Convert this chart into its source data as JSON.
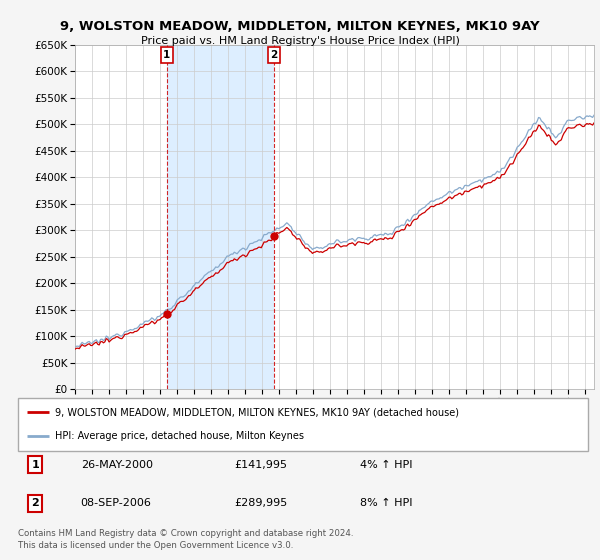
{
  "title": "9, WOLSTON MEADOW, MIDDLETON, MILTON KEYNES, MK10 9AY",
  "subtitle": "Price paid vs. HM Land Registry's House Price Index (HPI)",
  "ylim": [
    0,
    650000
  ],
  "yticks": [
    0,
    50000,
    100000,
    150000,
    200000,
    250000,
    300000,
    350000,
    400000,
    450000,
    500000,
    550000,
    600000,
    650000
  ],
  "legend_label_red": "9, WOLSTON MEADOW, MIDDLETON, MILTON KEYNES, MK10 9AY (detached house)",
  "legend_label_blue": "HPI: Average price, detached house, Milton Keynes",
  "sale1_date": "26-MAY-2000",
  "sale1_price": "£141,995",
  "sale1_hpi": "4% ↑ HPI",
  "sale2_date": "08-SEP-2006",
  "sale2_price": "£289,995",
  "sale2_hpi": "8% ↑ HPI",
  "footnote": "Contains HM Land Registry data © Crown copyright and database right 2024.\nThis data is licensed under the Open Government Licence v3.0.",
  "red_color": "#cc0000",
  "blue_color": "#88aacc",
  "shade_color": "#ddeeff",
  "grid_color": "#cccccc",
  "plot_bg_color": "#ffffff",
  "fig_bg_color": "#f5f5f5",
  "legend_bg": "#ffffff",
  "marker1_y": 141995,
  "marker2_y": 289995,
  "sale1_year": 2000.4,
  "sale2_year": 2006.69,
  "xlim_start": 1995,
  "xlim_end": 2025.5
}
